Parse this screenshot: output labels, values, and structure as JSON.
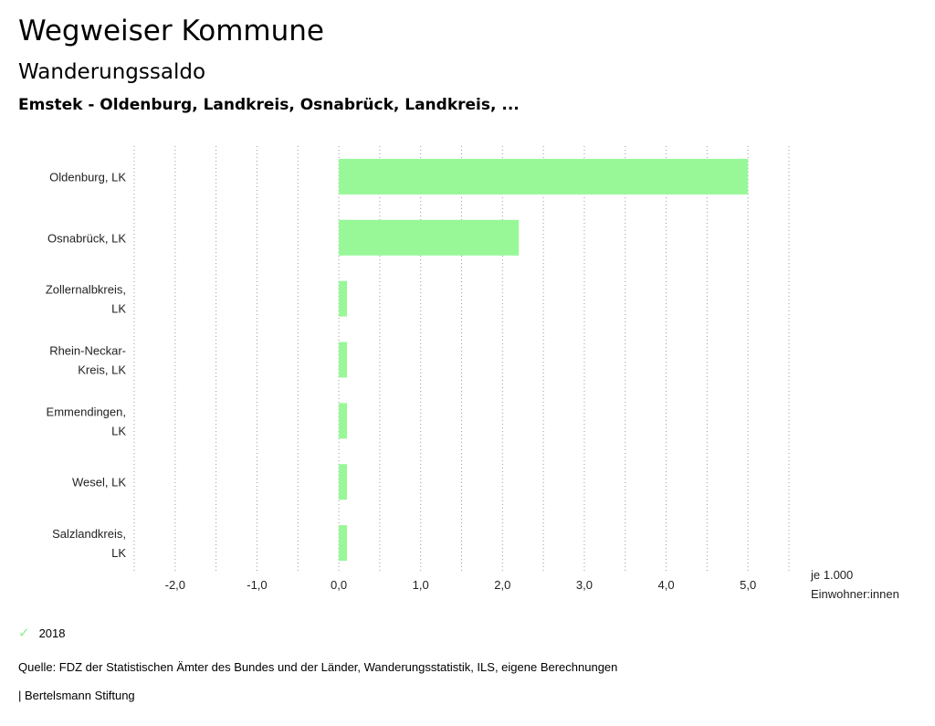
{
  "header": {
    "title": "Wegweiser Kommune",
    "subtitle": "Wanderungssaldo",
    "context": "Emstek - Oldenburg, Landkreis, Osnabrück, Landkreis, ..."
  },
  "chart_data": {
    "type": "bar",
    "orientation": "horizontal",
    "categories": [
      [
        "Oldenburg, LK"
      ],
      [
        "Osnabrück, LK"
      ],
      [
        "Zollernalbkreis,",
        "LK"
      ],
      [
        "Rhein-Neckar-",
        "Kreis, LK"
      ],
      [
        "Emmendingen,",
        "LK"
      ],
      [
        "Wesel, LK"
      ],
      [
        "Salzlandkreis,",
        "LK"
      ]
    ],
    "series": [
      {
        "name": "2018",
        "values": [
          5.0,
          2.2,
          0.1,
          0.1,
          0.1,
          0.1,
          0.1
        ]
      }
    ],
    "xlim": [
      -2.5,
      5.5
    ],
    "ticks": [
      -2.0,
      -1.0,
      0.0,
      1.0,
      2.0,
      3.0,
      4.0,
      5.0
    ],
    "tick_labels": [
      "-2,0",
      "-1,0",
      "0,0",
      "1,0",
      "2,0",
      "3,0",
      "4,0",
      "5,0"
    ],
    "gridlines": [
      -2.5,
      -2.0,
      -1.5,
      -1.0,
      -0.5,
      0.0,
      0.5,
      1.0,
      1.5,
      2.0,
      2.5,
      3.0,
      3.5,
      4.0,
      4.5,
      5.0,
      5.5
    ],
    "unit_label": [
      "je 1.000",
      "Einwohner:innen"
    ],
    "bar_color": "#98f898",
    "grid": "dotted"
  },
  "legend": {
    "label": "2018",
    "color": "#8cf08c"
  },
  "footer": {
    "source": "Quelle: FDZ der Statistischen Ämter des Bundes und der Länder, Wanderungsstatistik, ILS, eigene Berechnungen",
    "brand": "| Bertelsmann Stiftung"
  }
}
